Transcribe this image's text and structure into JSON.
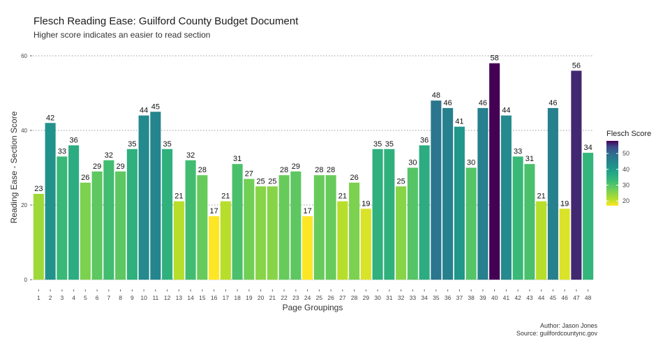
{
  "chart_data": {
    "type": "bar",
    "title": "Flesch Reading Ease: Guilford County Budget Document",
    "subtitle": "Higher score indicates an easier to read section",
    "xlabel": "Page Groupings",
    "ylabel": "Reading Ease - Section Score",
    "ylim": [
      0,
      60
    ],
    "yticks": [
      0,
      20,
      40,
      60
    ],
    "grid": "horizontal dotted",
    "categories": [
      "1",
      "2",
      "3",
      "4",
      "5",
      "6",
      "7",
      "8",
      "9",
      "10",
      "11",
      "12",
      "13",
      "14",
      "15",
      "16",
      "17",
      "18",
      "19",
      "20",
      "21",
      "22",
      "23",
      "24",
      "25",
      "26",
      "27",
      "28",
      "29",
      "30",
      "31",
      "32",
      "33",
      "34",
      "35",
      "36",
      "37",
      "38",
      "39",
      "40",
      "41",
      "42",
      "43",
      "44",
      "45",
      "46",
      "47",
      "48"
    ],
    "values": [
      23,
      42,
      33,
      36,
      26,
      29,
      32,
      29,
      35,
      44,
      45,
      35,
      21,
      32,
      28,
      17,
      21,
      31,
      27,
      25,
      25,
      28,
      29,
      17,
      28,
      28,
      21,
      26,
      19,
      35,
      35,
      25,
      30,
      36,
      48,
      46,
      41,
      30,
      46,
      58,
      44,
      33,
      31,
      21,
      46,
      19,
      56,
      34
    ],
    "data_labels": [
      "23",
      "42",
      "33",
      "36",
      "26",
      "29",
      "32",
      "29",
      "35",
      "44",
      "45",
      "35",
      "21",
      "32",
      "28",
      "17",
      "21",
      "31",
      "27",
      "25",
      "25",
      "28",
      "29",
      "17",
      "28",
      "28",
      "21",
      "26",
      "19",
      "35",
      "35",
      "25",
      "30",
      "36",
      "48",
      "46",
      "41",
      "30",
      "46",
      "58",
      "44",
      "33",
      "31",
      "21",
      "46",
      "19",
      "56",
      "34"
    ],
    "color_scale": {
      "name": "viridis (reversed)",
      "low_color": "#fde725",
      "high_color": "#440154",
      "domain": [
        17,
        58
      ]
    },
    "legend": {
      "title": "Flesch Score",
      "ticks": [
        "50",
        "40",
        "30",
        "20"
      ],
      "tick_values": [
        50,
        40,
        30,
        20
      ],
      "placement": "right"
    }
  },
  "caption": {
    "author": "Author: Jason Jones",
    "source": "Source: guilfordcountync.gov"
  }
}
